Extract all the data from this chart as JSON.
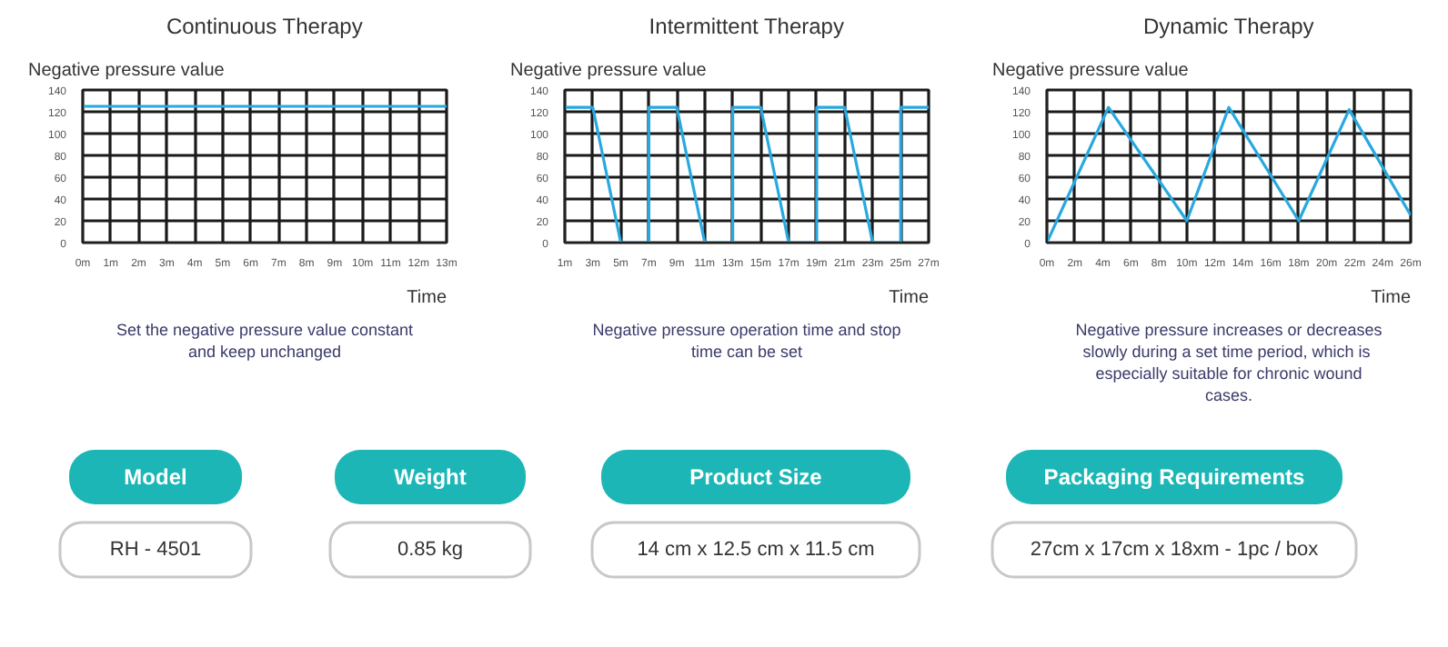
{
  "chart_data": [
    {
      "type": "line",
      "title": "Continuous Therapy",
      "ylabel": "Negative pressure value",
      "xlabel": "Time",
      "annotations": [
        "Set the negative pressure value constant and keep unchanged"
      ],
      "xlim": [
        0,
        13
      ],
      "ylim": [
        0,
        140
      ],
      "yticks": [
        0,
        20,
        40,
        60,
        80,
        100,
        120,
        140
      ],
      "xticks": [
        {
          "value": 0,
          "label": "0m"
        },
        {
          "value": 1,
          "label": "1m"
        },
        {
          "value": 2,
          "label": "2m"
        },
        {
          "value": 3,
          "label": "3m"
        },
        {
          "value": 4,
          "label": "4m"
        },
        {
          "value": 5,
          "label": "5m"
        },
        {
          "value": 6,
          "label": "6m"
        },
        {
          "value": 7,
          "label": "7m"
        },
        {
          "value": 8,
          "label": "8m"
        },
        {
          "value": 9,
          "label": "9m"
        },
        {
          "value": 10,
          "label": "10m"
        },
        {
          "value": 11,
          "label": "11m"
        },
        {
          "value": 12,
          "label": "12m"
        },
        {
          "value": 13,
          "label": "13m"
        }
      ],
      "grid": true,
      "marker": "none",
      "series": [
        {
          "color": "#29a8df",
          "x": [
            0,
            13
          ],
          "values": [
            125,
            125
          ]
        }
      ]
    },
    {
      "type": "line",
      "title": "Intermittent Therapy",
      "ylabel": "Negative pressure value",
      "xlabel": "Time",
      "annotations": [
        "Negative pressure operation time and stop time can be set"
      ],
      "xlim": [
        1,
        27
      ],
      "ylim": [
        0,
        140
      ],
      "yticks": [
        0,
        20,
        40,
        60,
        80,
        100,
        120,
        140
      ],
      "xticks": [
        {
          "value": 1,
          "label": "1m"
        },
        {
          "value": 3,
          "label": "3m"
        },
        {
          "value": 5,
          "label": "5m"
        },
        {
          "value": 7,
          "label": "7m"
        },
        {
          "value": 9,
          "label": "9m"
        },
        {
          "value": 11,
          "label": "11m"
        },
        {
          "value": 13,
          "label": "13m"
        },
        {
          "value": 15,
          "label": "15m"
        },
        {
          "value": 17,
          "label": "17m"
        },
        {
          "value": 19,
          "label": "19m"
        },
        {
          "value": 21,
          "label": "21m"
        },
        {
          "value": 23,
          "label": "23m"
        },
        {
          "value": 25,
          "label": "25m"
        },
        {
          "value": 27,
          "label": "27m"
        }
      ],
      "grid": true,
      "marker": "none",
      "series": [
        {
          "color": "#29a8df",
          "x": [
            1,
            3,
            5,
            7,
            7,
            9,
            11,
            13,
            13,
            15,
            17,
            19,
            19,
            21,
            23,
            25,
            25,
            27
          ],
          "values": [
            124,
            124,
            0,
            0,
            124,
            124,
            0,
            0,
            124,
            124,
            0,
            0,
            124,
            124,
            0,
            0,
            124,
            124
          ]
        }
      ]
    },
    {
      "type": "line",
      "title": "Dynamic Therapy",
      "ylabel": "Negative pressure value",
      "xlabel": "Time",
      "annotations": [
        "Negative pressure increases or decreases slowly  during a set time period, which is especially suitable for chronic wound cases."
      ],
      "xlim": [
        0,
        26
      ],
      "ylim": [
        0,
        140
      ],
      "yticks": [
        0,
        20,
        40,
        60,
        80,
        100,
        120,
        140
      ],
      "xticks": [
        {
          "value": 0,
          "label": "0m"
        },
        {
          "value": 2,
          "label": "2m"
        },
        {
          "value": 4,
          "label": "4m"
        },
        {
          "value": 6,
          "label": "6m"
        },
        {
          "value": 8,
          "label": "8m"
        },
        {
          "value": 10,
          "label": "10m"
        },
        {
          "value": 12,
          "label": "12m"
        },
        {
          "value": 14,
          "label": "14m"
        },
        {
          "value": 16,
          "label": "16m"
        },
        {
          "value": 18,
          "label": "18m"
        },
        {
          "value": 20,
          "label": "20m"
        },
        {
          "value": 22,
          "label": "22m"
        },
        {
          "value": 24,
          "label": "24m"
        },
        {
          "value": 26,
          "label": "26m"
        }
      ],
      "grid": true,
      "marker": "none",
      "series": [
        {
          "color": "#29a8df",
          "x": [
            0,
            4.4,
            10,
            13,
            18,
            21.6,
            26
          ],
          "values": [
            0,
            124,
            20,
            124,
            20,
            122,
            25
          ]
        }
      ]
    },
    {
      "type": "other",
      "categories": [
        "Model",
        "Weight",
        "Product Size",
        "Packaging Requirements"
      ],
      "annotations": [
        "RH - 4501",
        "0.85 kg",
        "14 cm x 12.5 cm x 11.5 cm",
        "27cm x 17cm x 18xm - 1pc / box"
      ],
      "color": "#1cb6b6"
    }
  ]
}
